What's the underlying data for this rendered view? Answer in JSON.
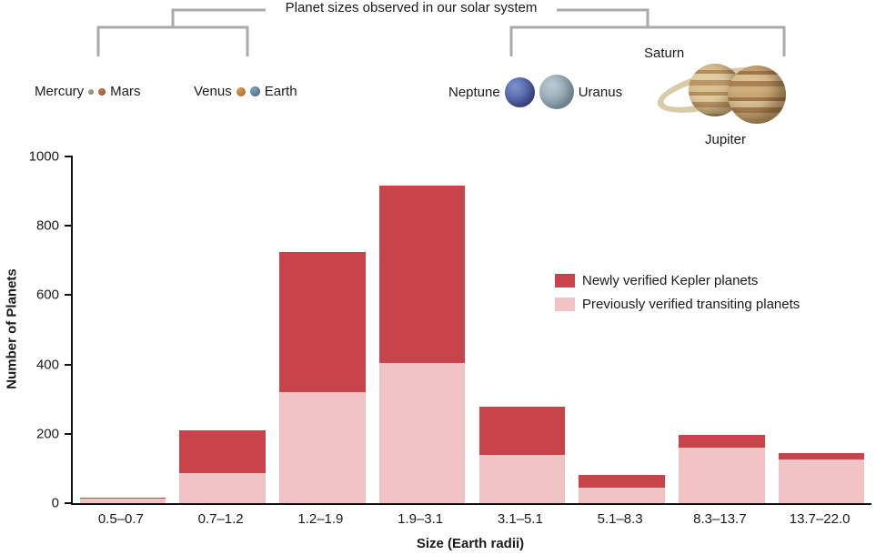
{
  "annotation": {
    "title": "Planet sizes observed in our solar system",
    "labels": {
      "mercury": "Mercury",
      "mars": "Mars",
      "venus": "Venus",
      "earth": "Earth",
      "neptune": "Neptune",
      "uranus": "Uranus",
      "saturn": "Saturn",
      "jupiter": "Jupiter"
    }
  },
  "chart_data": {
    "type": "bar",
    "stacked": true,
    "categories": [
      "0.5–0.7",
      "0.7–1.2",
      "1.2–1.9",
      "1.9–3.1",
      "3.1–5.1",
      "5.1–8.3",
      "8.3–13.7",
      "13.7–22.0"
    ],
    "series": [
      {
        "name": "Previously verified transiting planets",
        "color": "#f1c3c4",
        "values": [
          12,
          87,
          320,
          405,
          140,
          45,
          160,
          125
        ]
      },
      {
        "name": "Newly verified Kepler planets",
        "color": "#c9444a",
        "values": [
          5,
          123,
          405,
          510,
          137,
          37,
          37,
          20
        ]
      }
    ],
    "xlabel": "Size (Earth radii)",
    "ylabel": "Number of Planets",
    "ylim": [
      0,
      1000
    ],
    "yticks": [
      0,
      200,
      400,
      600,
      800,
      1000
    ],
    "grid": false,
    "legend_position": "inside-right"
  }
}
